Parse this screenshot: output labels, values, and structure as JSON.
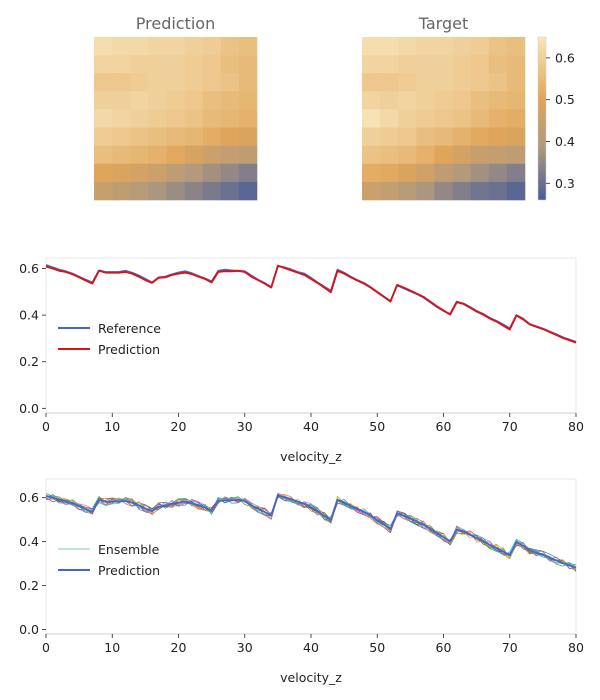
{
  "chart_data": [
    {
      "type": "heatmap",
      "title": "Prediction",
      "rows": 9,
      "cols": 9,
      "values": [
        [
          0.63,
          0.62,
          0.62,
          0.61,
          0.61,
          0.6,
          0.59,
          0.57,
          0.56
        ],
        [
          0.61,
          0.61,
          0.6,
          0.6,
          0.6,
          0.59,
          0.58,
          0.56,
          0.55
        ],
        [
          0.58,
          0.58,
          0.59,
          0.6,
          0.6,
          0.59,
          0.58,
          0.57,
          0.55
        ],
        [
          0.6,
          0.6,
          0.61,
          0.6,
          0.59,
          0.58,
          0.56,
          0.55,
          0.54
        ],
        [
          0.62,
          0.61,
          0.6,
          0.59,
          0.58,
          0.57,
          0.55,
          0.54,
          0.53
        ],
        [
          0.59,
          0.58,
          0.57,
          0.56,
          0.55,
          0.54,
          0.52,
          0.5,
          0.49
        ],
        [
          0.56,
          0.55,
          0.54,
          0.53,
          0.51,
          0.48,
          0.45,
          0.43,
          0.42
        ],
        [
          0.5,
          0.49,
          0.47,
          0.45,
          0.42,
          0.39,
          0.37,
          0.35,
          0.33
        ],
        [
          0.44,
          0.42,
          0.4,
          0.38,
          0.36,
          0.34,
          0.32,
          0.3,
          0.28
        ]
      ]
    },
    {
      "type": "heatmap",
      "title": "Target",
      "rows": 9,
      "cols": 9,
      "values": [
        [
          0.63,
          0.63,
          0.62,
          0.61,
          0.61,
          0.6,
          0.59,
          0.57,
          0.56
        ],
        [
          0.61,
          0.61,
          0.6,
          0.6,
          0.6,
          0.59,
          0.58,
          0.56,
          0.55
        ],
        [
          0.58,
          0.58,
          0.59,
          0.6,
          0.6,
          0.59,
          0.58,
          0.57,
          0.55
        ],
        [
          0.61,
          0.6,
          0.61,
          0.6,
          0.59,
          0.58,
          0.56,
          0.55,
          0.54
        ],
        [
          0.64,
          0.62,
          0.6,
          0.59,
          0.58,
          0.57,
          0.55,
          0.53,
          0.52
        ],
        [
          0.6,
          0.59,
          0.58,
          0.56,
          0.55,
          0.53,
          0.51,
          0.5,
          0.49
        ],
        [
          0.57,
          0.56,
          0.55,
          0.53,
          0.5,
          0.47,
          0.44,
          0.43,
          0.42
        ],
        [
          0.52,
          0.51,
          0.49,
          0.46,
          0.42,
          0.39,
          0.37,
          0.35,
          0.33
        ],
        [
          0.45,
          0.43,
          0.4,
          0.38,
          0.35,
          0.33,
          0.31,
          0.3,
          0.28
        ]
      ]
    },
    {
      "type": "colorbar",
      "range": [
        0.26,
        0.65
      ],
      "ticks": [
        "0.3",
        "0.4",
        "0.5",
        "0.6"
      ],
      "tick_values": [
        0.3,
        0.4,
        0.5,
        0.6
      ],
      "colormap": [
        "#4a5e9a",
        "#b29a7c",
        "#e0a55a",
        "#f8e6ba"
      ]
    },
    {
      "type": "line",
      "xlabel": "velocity_z",
      "xlim": [
        0,
        80
      ],
      "ylim": [
        -0.02,
        0.645
      ],
      "xticks": [
        "0",
        "10",
        "20",
        "30",
        "40",
        "50",
        "60",
        "70",
        "80"
      ],
      "yticks": [
        "0.0",
        "0.2",
        "0.4",
        "0.6"
      ],
      "legend": "center-left",
      "series": [
        {
          "name": "Reference",
          "color": "#4466cc",
          "y": [
            0.615,
            0.605,
            0.595,
            0.588,
            0.578,
            0.565,
            0.552,
            0.54,
            0.592,
            0.585,
            0.585,
            0.585,
            0.59,
            0.582,
            0.57,
            0.555,
            0.54,
            0.562,
            0.565,
            0.575,
            0.583,
            0.588,
            0.58,
            0.568,
            0.557,
            0.545,
            0.59,
            0.595,
            0.592,
            0.59,
            0.588,
            0.57,
            0.552,
            0.538,
            0.52,
            0.61,
            0.605,
            0.596,
            0.585,
            0.578,
            0.56,
            0.54,
            0.522,
            0.505,
            0.595,
            0.582,
            0.565,
            0.55,
            0.538,
            0.52,
            0.5,
            0.48,
            0.46,
            0.528,
            0.515,
            0.502,
            0.49,
            0.475,
            0.455,
            0.435,
            0.418,
            0.405,
            0.458,
            0.45,
            0.435,
            0.418,
            0.405,
            0.388,
            0.375,
            0.36,
            0.343,
            0.4,
            0.385,
            0.362,
            0.352,
            0.342,
            0.33,
            0.318,
            0.305,
            0.295,
            0.285
          ]
        },
        {
          "name": "Prediction",
          "color": "#dd1111",
          "y": [
            0.608,
            0.6,
            0.59,
            0.585,
            0.575,
            0.562,
            0.548,
            0.535,
            0.59,
            0.582,
            0.582,
            0.582,
            0.585,
            0.578,
            0.565,
            0.55,
            0.538,
            0.56,
            0.562,
            0.572,
            0.578,
            0.582,
            0.576,
            0.565,
            0.555,
            0.54,
            0.585,
            0.588,
            0.588,
            0.59,
            0.585,
            0.565,
            0.55,
            0.535,
            0.518,
            0.612,
            0.602,
            0.592,
            0.582,
            0.572,
            0.555,
            0.538,
            0.518,
            0.498,
            0.59,
            0.578,
            0.562,
            0.548,
            0.535,
            0.518,
            0.498,
            0.478,
            0.458,
            0.53,
            0.518,
            0.505,
            0.492,
            0.478,
            0.458,
            0.438,
            0.42,
            0.402,
            0.455,
            0.448,
            0.432,
            0.415,
            0.402,
            0.385,
            0.372,
            0.355,
            0.338,
            0.398,
            0.382,
            0.36,
            0.35,
            0.34,
            0.328,
            0.315,
            0.302,
            0.292,
            0.282
          ]
        }
      ]
    },
    {
      "type": "line",
      "xlabel": "velocity_z",
      "xlim": [
        0,
        80
      ],
      "ylim": [
        -0.02,
        0.685
      ],
      "xticks": [
        "0",
        "10",
        "20",
        "30",
        "40",
        "50",
        "60",
        "70",
        "80"
      ],
      "yticks": [
        "0.0",
        "0.2",
        "0.4",
        "0.6"
      ],
      "legend": "center-left",
      "ensemble": {
        "name": "Ensemble",
        "members": 10,
        "noise": 0.018,
        "colors": [
          "#1f77b4",
          "#ff7f0e",
          "#2ca02c",
          "#d62728",
          "#9467bd",
          "#8c564b",
          "#e377c2",
          "#7f7f7f",
          "#bcbd22",
          "#17becf"
        ]
      },
      "series": [
        {
          "name": "Prediction",
          "color": "#4466cc",
          "y": [
            0.608,
            0.6,
            0.59,
            0.585,
            0.575,
            0.562,
            0.548,
            0.535,
            0.59,
            0.582,
            0.582,
            0.582,
            0.585,
            0.578,
            0.565,
            0.55,
            0.538,
            0.56,
            0.562,
            0.572,
            0.578,
            0.582,
            0.576,
            0.565,
            0.555,
            0.54,
            0.585,
            0.588,
            0.588,
            0.59,
            0.585,
            0.565,
            0.55,
            0.535,
            0.518,
            0.612,
            0.602,
            0.592,
            0.582,
            0.572,
            0.555,
            0.538,
            0.518,
            0.498,
            0.59,
            0.578,
            0.562,
            0.548,
            0.535,
            0.518,
            0.498,
            0.478,
            0.458,
            0.53,
            0.518,
            0.505,
            0.492,
            0.478,
            0.458,
            0.438,
            0.42,
            0.402,
            0.455,
            0.448,
            0.432,
            0.415,
            0.402,
            0.385,
            0.372,
            0.355,
            0.338,
            0.398,
            0.382,
            0.36,
            0.35,
            0.34,
            0.328,
            0.315,
            0.302,
            0.292,
            0.282
          ]
        }
      ]
    }
  ]
}
